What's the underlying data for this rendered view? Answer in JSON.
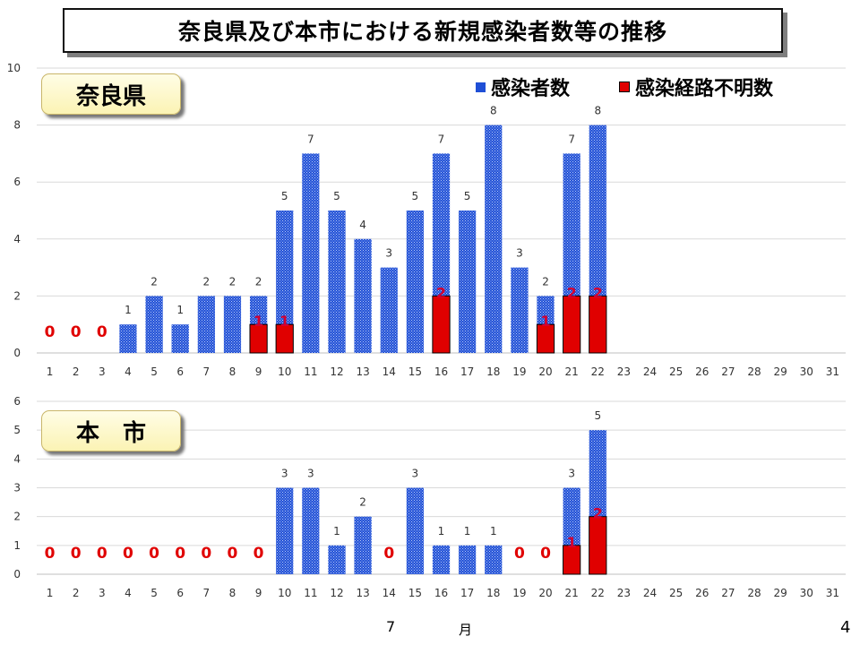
{
  "title": "奈良県及び本市における新規感染者数等の推移",
  "legend": {
    "total": "感染者数",
    "unknown": "感染経路不明数"
  },
  "footer": {
    "month_number": "7",
    "month_unit": "月",
    "page_number": "4"
  },
  "colors": {
    "total_bar": "#1f4fd6",
    "unknown_bar": "#e00000",
    "zero_label": "#e00000",
    "unknown_label": "#d40030",
    "grid": "#d9d9d9"
  },
  "chart_data": [
    {
      "type": "bar",
      "panel_label": "奈良県",
      "categories": [
        "1",
        "2",
        "3",
        "4",
        "5",
        "6",
        "7",
        "8",
        "9",
        "10",
        "11",
        "12",
        "13",
        "14",
        "15",
        "16",
        "17",
        "18",
        "19",
        "20",
        "21",
        "22",
        "23",
        "24",
        "25",
        "26",
        "27",
        "28",
        "29",
        "30",
        "31"
      ],
      "series": [
        {
          "name": "感染者数",
          "values": [
            0,
            0,
            0,
            1,
            2,
            1,
            2,
            2,
            2,
            5,
            7,
            5,
            4,
            3,
            5,
            7,
            5,
            8,
            3,
            2,
            7,
            8,
            null,
            null,
            null,
            null,
            null,
            null,
            null,
            null,
            null
          ]
        },
        {
          "name": "感染経路不明数",
          "values": [
            null,
            null,
            null,
            null,
            null,
            null,
            null,
            null,
            1,
            1,
            null,
            null,
            null,
            null,
            null,
            2,
            null,
            null,
            null,
            1,
            2,
            2,
            null,
            null,
            null,
            null,
            null,
            null,
            null,
            null,
            null
          ]
        }
      ],
      "ylim": [
        0,
        10
      ],
      "yticks": [
        0,
        2,
        4,
        6,
        8,
        10
      ],
      "grid": true
    },
    {
      "type": "bar",
      "panel_label": "本　市",
      "categories": [
        "1",
        "2",
        "3",
        "4",
        "5",
        "6",
        "7",
        "8",
        "9",
        "10",
        "11",
        "12",
        "13",
        "14",
        "15",
        "16",
        "17",
        "18",
        "19",
        "20",
        "21",
        "22",
        "23",
        "24",
        "25",
        "26",
        "27",
        "28",
        "29",
        "30",
        "31"
      ],
      "series": [
        {
          "name": "感染者数",
          "values": [
            0,
            0,
            0,
            0,
            0,
            0,
            0,
            0,
            0,
            3,
            3,
            1,
            2,
            0,
            3,
            1,
            1,
            1,
            0,
            0,
            3,
            5,
            null,
            null,
            null,
            null,
            null,
            null,
            null,
            null,
            null
          ]
        },
        {
          "name": "感染経路不明数",
          "values": [
            null,
            null,
            null,
            null,
            null,
            null,
            null,
            null,
            null,
            null,
            null,
            null,
            null,
            null,
            null,
            null,
            null,
            null,
            null,
            null,
            1,
            2,
            null,
            null,
            null,
            null,
            null,
            null,
            null,
            null,
            null
          ]
        }
      ],
      "ylim": [
        0,
        6
      ],
      "yticks": [
        0,
        1,
        2,
        3,
        4,
        5,
        6
      ],
      "grid": true
    }
  ]
}
